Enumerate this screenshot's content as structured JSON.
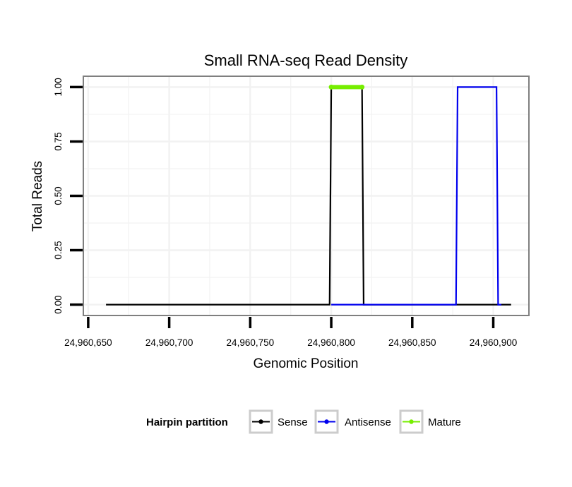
{
  "chart_data": {
    "type": "line",
    "title": "Small RNA-seq Read Density",
    "xlabel": "Genomic Position",
    "ylabel": "Total Reads",
    "xlim": [
      24960647,
      24960922
    ],
    "ylim": [
      -0.05,
      1.05
    ],
    "x_ticks": [
      24960650,
      24960700,
      24960750,
      24960800,
      24960850,
      24960900
    ],
    "x_tick_labels": [
      "24,960,650",
      "24,960,700",
      "24,960,750",
      "24,960,800",
      "24,960,850",
      "24,960,900"
    ],
    "y_ticks": [
      0,
      0.25,
      0.5,
      0.75,
      1.0
    ],
    "y_tick_labels": [
      "0.00",
      "0.25",
      "0.50",
      "0.75",
      "1.00"
    ],
    "grid": true,
    "legend_position": "bottom",
    "legend_title": "Hairpin partition",
    "series": [
      {
        "name": "Sense",
        "color": "#000000",
        "x": [
          24960661,
          24960799,
          24960800,
          24960819,
          24960820,
          24960911
        ],
        "y": [
          0,
          0,
          1,
          1,
          0,
          0
        ]
      },
      {
        "name": "Antisense",
        "color": "#0000ee",
        "x": [
          24960800,
          24960819,
          24960821,
          24960877,
          24960878,
          24960902,
          24960903,
          24960905
        ],
        "y": [
          0,
          0,
          0,
          0,
          1,
          1,
          0,
          0
        ]
      },
      {
        "name": "Mature",
        "color": "#76ee00",
        "x": [
          24960800,
          24960819
        ],
        "y": [
          1,
          1
        ]
      }
    ]
  },
  "colors": {
    "panel_border": "#7f7f7f",
    "grid": "#f2f2f2",
    "legend_key_border": "#cccccc"
  }
}
